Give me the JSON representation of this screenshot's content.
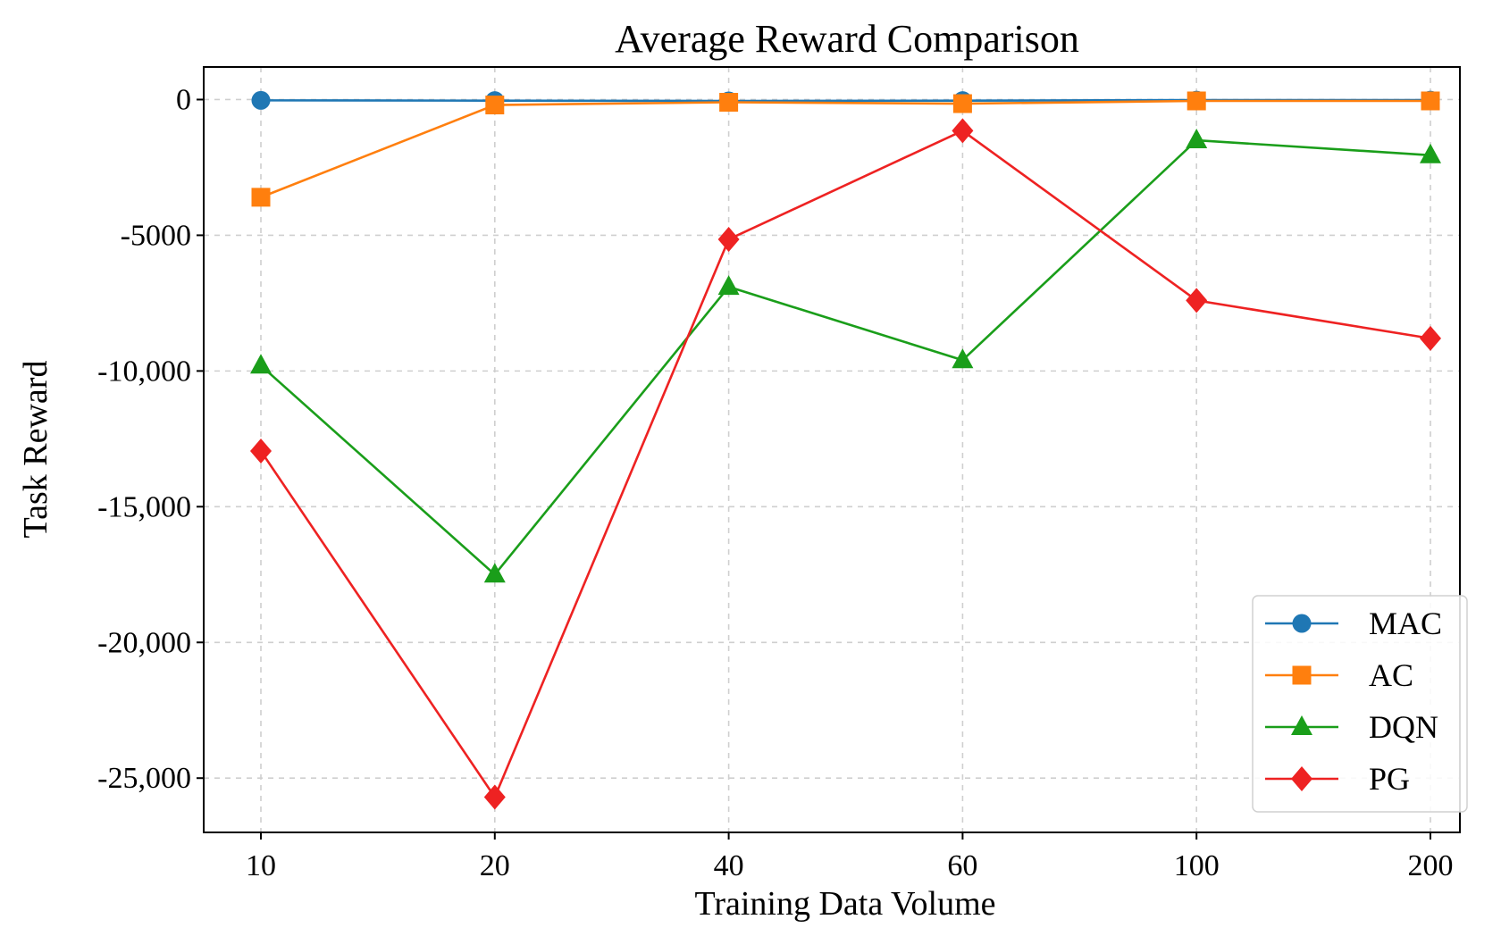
{
  "chart_data": {
    "type": "line",
    "title": "Average Reward Comparison",
    "xlabel": "Training Data Volume",
    "ylabel": "Task Reward",
    "categories": [
      "10",
      "20",
      "40",
      "60",
      "100",
      "200"
    ],
    "ylim": [
      -27000,
      1200
    ],
    "yticks": [
      {
        "value": 0,
        "label": "0"
      },
      {
        "value": -5000,
        "label": "-5000"
      },
      {
        "value": -10000,
        "label": "-10,000"
      },
      {
        "value": -15000,
        "label": "-15,000"
      },
      {
        "value": -20000,
        "label": "-20,000"
      },
      {
        "value": -25000,
        "label": "-25,000"
      }
    ],
    "grid": true,
    "legend_position": "bottom-right",
    "series": [
      {
        "name": "MAC",
        "color": "#1f77b4",
        "marker": "circle",
        "values": [
          -30,
          -40,
          -50,
          -40,
          -20,
          -20
        ]
      },
      {
        "name": "AC",
        "color": "#ff7f0e",
        "marker": "square",
        "values": [
          -3600,
          -200,
          -100,
          -150,
          -50,
          -50
        ]
      },
      {
        "name": "DQN",
        "color": "#1a9e1a",
        "marker": "triangle",
        "values": [
          -9800,
          -17500,
          -6900,
          -9600,
          -1500,
          -2050
        ]
      },
      {
        "name": "PG",
        "color": "#ee2222",
        "marker": "diamond",
        "values": [
          -12950,
          -25700,
          -5150,
          -1150,
          -7400,
          -8800
        ]
      }
    ]
  }
}
